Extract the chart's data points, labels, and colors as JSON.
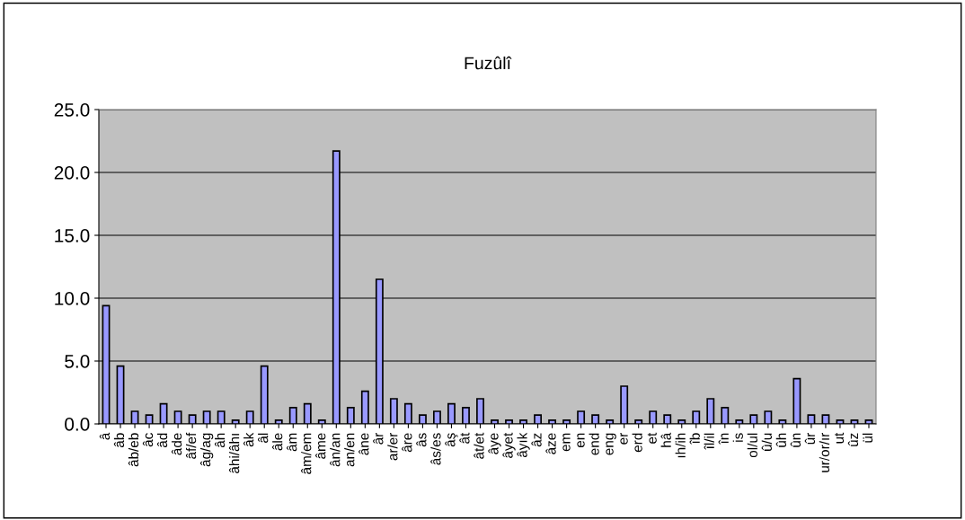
{
  "chart_data": {
    "type": "bar",
    "title": "Fuzûlî",
    "categories": [
      "â",
      "âb",
      "âb/eb",
      "âc",
      "âd",
      "âde",
      "âf/ef",
      "âg/ag",
      "âh",
      "âhi/âhı",
      "âk",
      "âl",
      "âle",
      "âm",
      "âm/em",
      "âme",
      "ân/an",
      "an/en",
      "âne",
      "âr",
      "ar/er",
      "âre",
      "âs",
      "âs/es",
      "âş",
      "ât",
      "ât/et",
      "âye",
      "âyet",
      "âyık",
      "âz",
      "âze",
      "em",
      "en",
      "end",
      "eng",
      "er",
      "erd",
      "et",
      "hâ",
      "ıh/ih",
      "îb",
      "îl/il",
      "în",
      "is",
      "ol/ul",
      "û/u",
      "ûh",
      "ûn",
      "ûr",
      "ur/or/ır",
      "ut",
      "ûz",
      "ül"
    ],
    "values": [
      9.4,
      4.6,
      1.0,
      0.7,
      1.6,
      1.0,
      0.7,
      1.0,
      1.0,
      0.3,
      1.0,
      4.6,
      0.3,
      1.3,
      1.6,
      0.3,
      21.7,
      1.3,
      2.6,
      11.5,
      2.0,
      1.6,
      0.7,
      1.0,
      1.6,
      1.3,
      2.0,
      0.3,
      0.3,
      0.3,
      0.7,
      0.3,
      0.3,
      1.0,
      0.7,
      0.3,
      3.0,
      0.3,
      1.0,
      0.7,
      0.3,
      1.0,
      2.0,
      1.3,
      0.3,
      0.7,
      1.0,
      0.3,
      3.6,
      0.7,
      0.7,
      0.3,
      0.3,
      0.3
    ],
    "color": "#9999ff",
    "ylim": [
      0,
      25
    ],
    "yticks": [
      {
        "value": 0,
        "label": "0.0"
      },
      {
        "value": 5,
        "label": "5.0"
      },
      {
        "value": 10,
        "label": "10.0"
      },
      {
        "value": 15,
        "label": "15.0"
      },
      {
        "value": 20,
        "label": "20.0"
      },
      {
        "value": 25,
        "label": "25.0"
      }
    ],
    "grid": "y",
    "legend": false
  }
}
